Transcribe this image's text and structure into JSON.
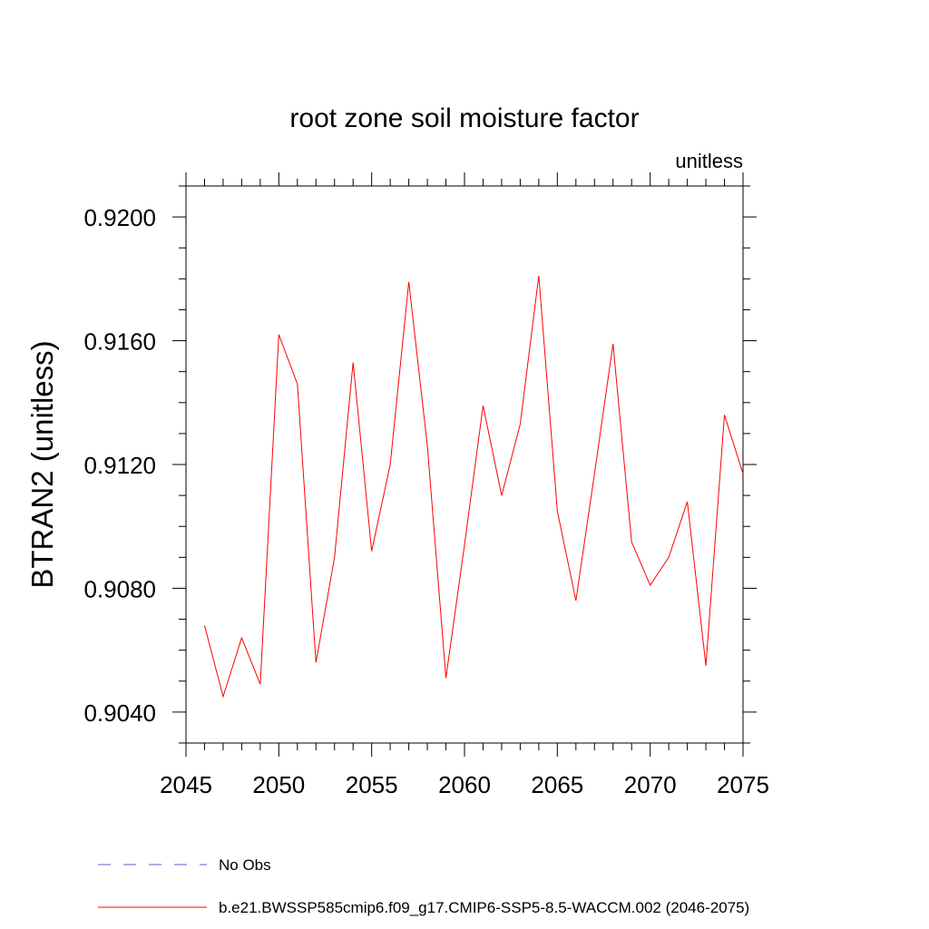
{
  "chart_data": {
    "type": "line",
    "title": "root zone soil moisture factor",
    "units_label": "unitless",
    "ylabel": "BTRAN2  (unitless)",
    "xlabel": "",
    "xlim": [
      2045,
      2075
    ],
    "ylim": [
      0.903,
      0.921
    ],
    "x_ticks": [
      2045,
      2050,
      2055,
      2060,
      2065,
      2070,
      2075
    ],
    "x_tick_labels": [
      "2045",
      "2050",
      "2055",
      "2060",
      "2065",
      "2070",
      "2075"
    ],
    "y_ticks": [
      0.904,
      0.908,
      0.912,
      0.916,
      0.92
    ],
    "y_tick_labels": [
      "0.9040",
      "0.9080",
      "0.9120",
      "0.9160",
      "0.9200"
    ],
    "x_minor_step": 1,
    "y_minor_step": 0.001,
    "grid": false,
    "legend_position": "bottom",
    "series": [
      {
        "name": "b.e21.BWSSP585cmip6.f09_g17.CMIP6-SSP5-8.5-WACCM.002 (2046-2075)",
        "color": "#ff0000",
        "style": "solid",
        "x": [
          2046,
          2047,
          2048,
          2049,
          2050,
          2051,
          2052,
          2053,
          2054,
          2055,
          2056,
          2057,
          2058,
          2059,
          2060,
          2061,
          2062,
          2063,
          2064,
          2065,
          2066,
          2067,
          2068,
          2069,
          2070,
          2071,
          2072,
          2073,
          2074,
          2075
        ],
        "values": [
          0.9068,
          0.9045,
          0.9064,
          0.9049,
          0.9162,
          0.9146,
          0.9056,
          0.909,
          0.9153,
          0.9092,
          0.912,
          0.9179,
          0.9126,
          0.9051,
          0.9094,
          0.9139,
          0.911,
          0.9133,
          0.9181,
          0.9105,
          0.9076,
          0.9117,
          0.9159,
          0.9095,
          0.9081,
          0.909,
          0.9108,
          0.9055,
          0.9136,
          0.9117
        ]
      }
    ],
    "legend": [
      {
        "label": "No Obs",
        "color": "#6a5acd",
        "style": "dashed"
      },
      {
        "label": "b.e21.BWSSP585cmip6.f09_g17.CMIP6-SSP5-8.5-WACCM.002 (2046-2075)",
        "color": "#ff0000",
        "style": "solid"
      }
    ]
  }
}
